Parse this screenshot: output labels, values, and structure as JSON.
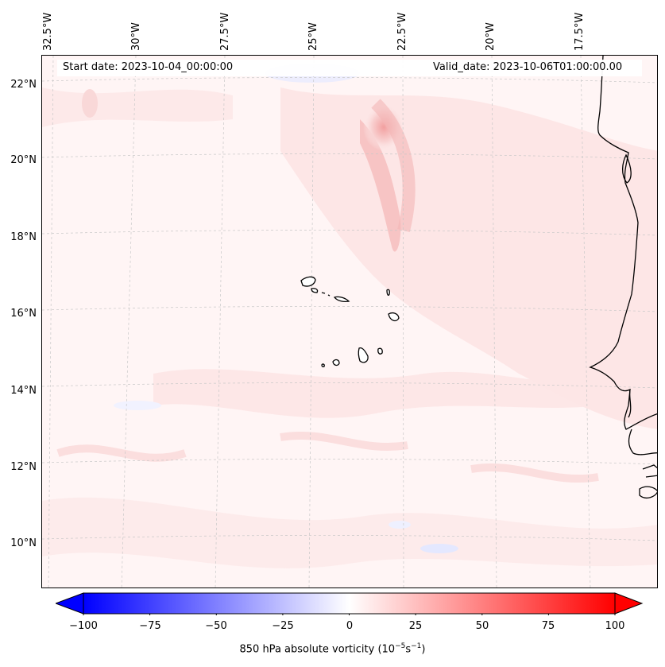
{
  "map": {
    "start_date": "Start date: 2023-10-04_00:00:00",
    "valid_date": "Valid_date: 2023-10-06T01:00:00.00",
    "lon_labels": [
      "32.5°W",
      "30°W",
      "27.5°W",
      "25°W",
      "22.5°W",
      "20°W",
      "17.5°W"
    ],
    "lat_labels": [
      "22°N",
      "20°N",
      "18°N",
      "16°N",
      "14°N",
      "12°N",
      "10°N"
    ],
    "gridlines": true
  },
  "colorbar": {
    "ticks": [
      "−100",
      "−75",
      "−50",
      "−25",
      "0",
      "25",
      "50",
      "75",
      "100"
    ],
    "range": [
      -100,
      100
    ],
    "label_main": "850 hPa absolute vorticity (10",
    "label_exp1": "−5",
    "label_mid": "s",
    "label_exp2": "−1",
    "label_end": ")",
    "colormap": "bwr",
    "color_min": "#0000ff",
    "color_mid": "#ffffff",
    "color_max": "#ff0000"
  }
}
